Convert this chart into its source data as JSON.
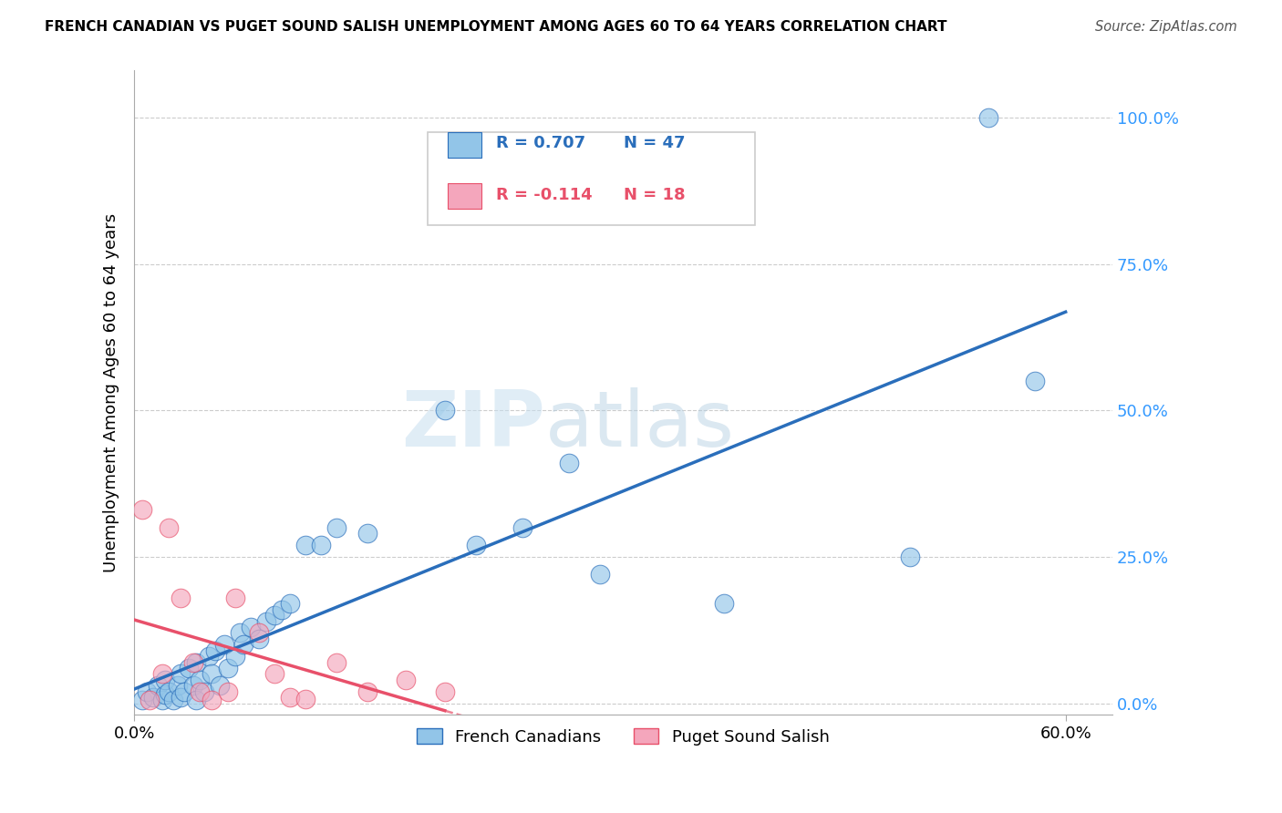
{
  "title": "FRENCH CANADIAN VS PUGET SOUND SALISH UNEMPLOYMENT AMONG AGES 60 TO 64 YEARS CORRELATION CHART",
  "source": "Source: ZipAtlas.com",
  "ylabel": "Unemployment Among Ages 60 to 64 years",
  "ytick_labels": [
    "0.0%",
    "25.0%",
    "50.0%",
    "75.0%",
    "100.0%"
  ],
  "ytick_values": [
    0.0,
    0.25,
    0.5,
    0.75,
    1.0
  ],
  "xlim": [
    0.0,
    0.63
  ],
  "ylim": [
    -0.02,
    1.08
  ],
  "legend1_label": "French Canadians",
  "legend2_label": "Puget Sound Salish",
  "r1": "0.707",
  "n1": "47",
  "r2": "-0.114",
  "n2": "18",
  "blue_color": "#92c5e8",
  "pink_color": "#f4a6bc",
  "blue_line_color": "#2a6ebb",
  "pink_line_color": "#e8506a",
  "watermark_zip": "ZIP",
  "watermark_atlas": "atlas",
  "blue_scatter_x": [
    0.005,
    0.008,
    0.012,
    0.015,
    0.018,
    0.02,
    0.02,
    0.022,
    0.025,
    0.028,
    0.03,
    0.03,
    0.032,
    0.035,
    0.038,
    0.04,
    0.04,
    0.042,
    0.045,
    0.048,
    0.05,
    0.052,
    0.055,
    0.058,
    0.06,
    0.065,
    0.068,
    0.07,
    0.075,
    0.08,
    0.085,
    0.09,
    0.095,
    0.1,
    0.11,
    0.12,
    0.13,
    0.15,
    0.2,
    0.22,
    0.25,
    0.28,
    0.3,
    0.38,
    0.5,
    0.55,
    0.58
  ],
  "blue_scatter_y": [
    0.005,
    0.02,
    0.01,
    0.03,
    0.005,
    0.015,
    0.04,
    0.02,
    0.005,
    0.03,
    0.01,
    0.05,
    0.02,
    0.06,
    0.03,
    0.005,
    0.07,
    0.04,
    0.02,
    0.08,
    0.05,
    0.09,
    0.03,
    0.1,
    0.06,
    0.08,
    0.12,
    0.1,
    0.13,
    0.11,
    0.14,
    0.15,
    0.16,
    0.17,
    0.27,
    0.27,
    0.3,
    0.29,
    0.5,
    0.27,
    0.3,
    0.41,
    0.22,
    0.17,
    0.25,
    1.0,
    0.55
  ],
  "pink_scatter_x": [
    0.005,
    0.01,
    0.018,
    0.022,
    0.03,
    0.038,
    0.042,
    0.05,
    0.06,
    0.065,
    0.08,
    0.09,
    0.1,
    0.11,
    0.13,
    0.15,
    0.175,
    0.2
  ],
  "pink_scatter_y": [
    0.33,
    0.005,
    0.05,
    0.3,
    0.18,
    0.07,
    0.02,
    0.005,
    0.02,
    0.18,
    0.12,
    0.05,
    0.01,
    0.007,
    0.07,
    0.02,
    0.04,
    0.02
  ]
}
